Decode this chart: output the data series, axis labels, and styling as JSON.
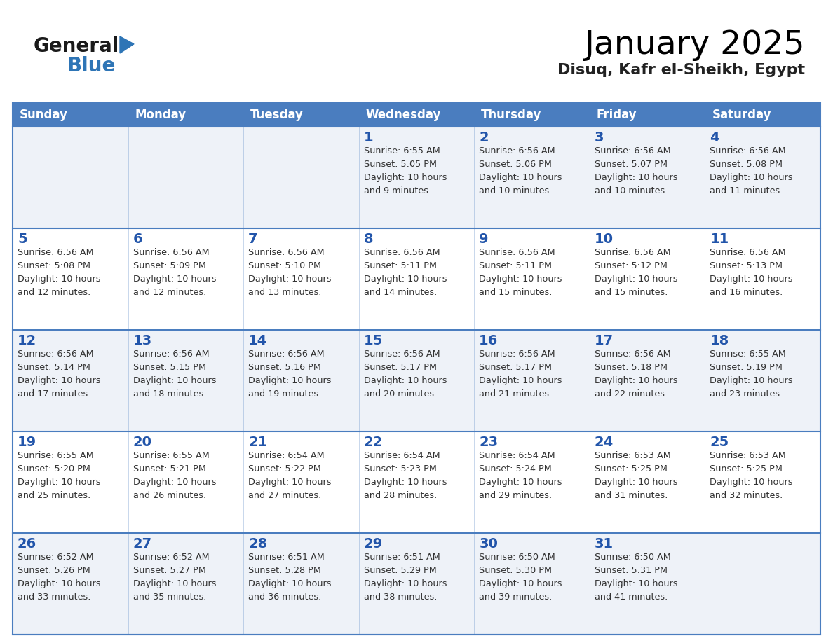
{
  "title": "January 2025",
  "subtitle": "Disuq, Kafr el-Sheikh, Egypt",
  "days_of_week": [
    "Sunday",
    "Monday",
    "Tuesday",
    "Wednesday",
    "Thursday",
    "Friday",
    "Saturday"
  ],
  "header_bg": "#4A7DBF",
  "header_text_color": "#FFFFFF",
  "cell_bg_odd": "#EEF2F8",
  "cell_bg_even": "#FFFFFF",
  "cell_border_top_color": "#4A7DBF",
  "cell_border_color": "#AAAAAA",
  "day_number_color": "#2255AA",
  "text_color": "#333333",
  "logo_general_color": "#1A1A1A",
  "logo_blue_color": "#2E75B6",
  "calendar_data": [
    [
      null,
      null,
      null,
      {
        "day": 1,
        "sunrise": "6:55 AM",
        "sunset": "5:05 PM",
        "daylight": "10 hours and 9 minutes."
      },
      {
        "day": 2,
        "sunrise": "6:56 AM",
        "sunset": "5:06 PM",
        "daylight": "10 hours and 10 minutes."
      },
      {
        "day": 3,
        "sunrise": "6:56 AM",
        "sunset": "5:07 PM",
        "daylight": "10 hours and 10 minutes."
      },
      {
        "day": 4,
        "sunrise": "6:56 AM",
        "sunset": "5:08 PM",
        "daylight": "10 hours and 11 minutes."
      }
    ],
    [
      {
        "day": 5,
        "sunrise": "6:56 AM",
        "sunset": "5:08 PM",
        "daylight": "10 hours and 12 minutes."
      },
      {
        "day": 6,
        "sunrise": "6:56 AM",
        "sunset": "5:09 PM",
        "daylight": "10 hours and 12 minutes."
      },
      {
        "day": 7,
        "sunrise": "6:56 AM",
        "sunset": "5:10 PM",
        "daylight": "10 hours and 13 minutes."
      },
      {
        "day": 8,
        "sunrise": "6:56 AM",
        "sunset": "5:11 PM",
        "daylight": "10 hours and 14 minutes."
      },
      {
        "day": 9,
        "sunrise": "6:56 AM",
        "sunset": "5:11 PM",
        "daylight": "10 hours and 15 minutes."
      },
      {
        "day": 10,
        "sunrise": "6:56 AM",
        "sunset": "5:12 PM",
        "daylight": "10 hours and 15 minutes."
      },
      {
        "day": 11,
        "sunrise": "6:56 AM",
        "sunset": "5:13 PM",
        "daylight": "10 hours and 16 minutes."
      }
    ],
    [
      {
        "day": 12,
        "sunrise": "6:56 AM",
        "sunset": "5:14 PM",
        "daylight": "10 hours and 17 minutes."
      },
      {
        "day": 13,
        "sunrise": "6:56 AM",
        "sunset": "5:15 PM",
        "daylight": "10 hours and 18 minutes."
      },
      {
        "day": 14,
        "sunrise": "6:56 AM",
        "sunset": "5:16 PM",
        "daylight": "10 hours and 19 minutes."
      },
      {
        "day": 15,
        "sunrise": "6:56 AM",
        "sunset": "5:17 PM",
        "daylight": "10 hours and 20 minutes."
      },
      {
        "day": 16,
        "sunrise": "6:56 AM",
        "sunset": "5:17 PM",
        "daylight": "10 hours and 21 minutes."
      },
      {
        "day": 17,
        "sunrise": "6:56 AM",
        "sunset": "5:18 PM",
        "daylight": "10 hours and 22 minutes."
      },
      {
        "day": 18,
        "sunrise": "6:55 AM",
        "sunset": "5:19 PM",
        "daylight": "10 hours and 23 minutes."
      }
    ],
    [
      {
        "day": 19,
        "sunrise": "6:55 AM",
        "sunset": "5:20 PM",
        "daylight": "10 hours and 25 minutes."
      },
      {
        "day": 20,
        "sunrise": "6:55 AM",
        "sunset": "5:21 PM",
        "daylight": "10 hours and 26 minutes."
      },
      {
        "day": 21,
        "sunrise": "6:54 AM",
        "sunset": "5:22 PM",
        "daylight": "10 hours and 27 minutes."
      },
      {
        "day": 22,
        "sunrise": "6:54 AM",
        "sunset": "5:23 PM",
        "daylight": "10 hours and 28 minutes."
      },
      {
        "day": 23,
        "sunrise": "6:54 AM",
        "sunset": "5:24 PM",
        "daylight": "10 hours and 29 minutes."
      },
      {
        "day": 24,
        "sunrise": "6:53 AM",
        "sunset": "5:25 PM",
        "daylight": "10 hours and 31 minutes."
      },
      {
        "day": 25,
        "sunrise": "6:53 AM",
        "sunset": "5:25 PM",
        "daylight": "10 hours and 32 minutes."
      }
    ],
    [
      {
        "day": 26,
        "sunrise": "6:52 AM",
        "sunset": "5:26 PM",
        "daylight": "10 hours and 33 minutes."
      },
      {
        "day": 27,
        "sunrise": "6:52 AM",
        "sunset": "5:27 PM",
        "daylight": "10 hours and 35 minutes."
      },
      {
        "day": 28,
        "sunrise": "6:51 AM",
        "sunset": "5:28 PM",
        "daylight": "10 hours and 36 minutes."
      },
      {
        "day": 29,
        "sunrise": "6:51 AM",
        "sunset": "5:29 PM",
        "daylight": "10 hours and 38 minutes."
      },
      {
        "day": 30,
        "sunrise": "6:50 AM",
        "sunset": "5:30 PM",
        "daylight": "10 hours and 39 minutes."
      },
      {
        "day": 31,
        "sunrise": "6:50 AM",
        "sunset": "5:31 PM",
        "daylight": "10 hours and 41 minutes."
      },
      null
    ]
  ]
}
